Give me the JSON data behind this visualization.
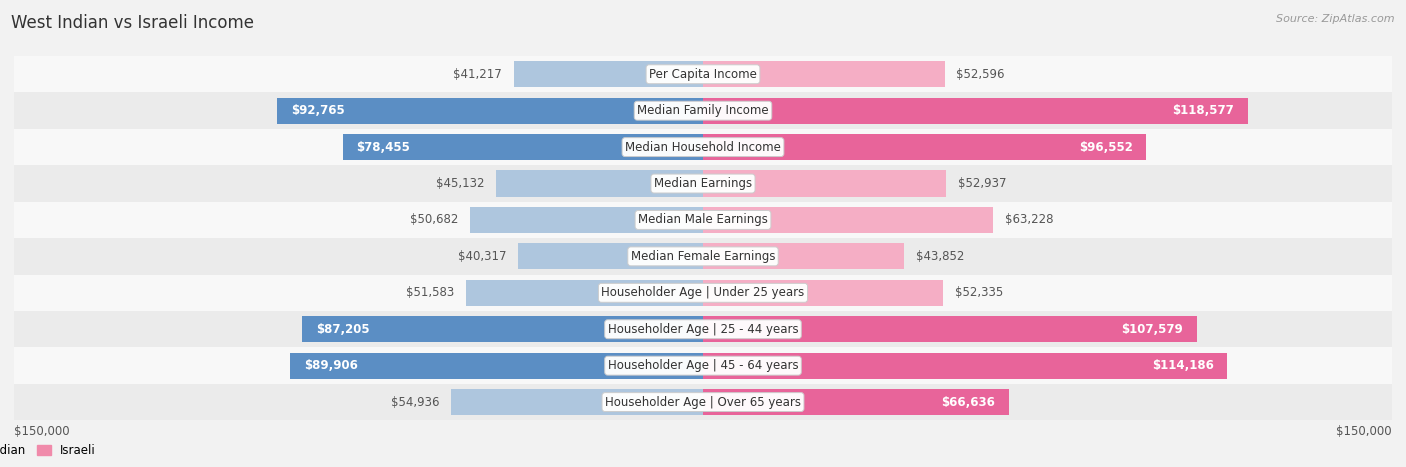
{
  "title": "West Indian vs Israeli Income",
  "source": "Source: ZipAtlas.com",
  "categories": [
    "Per Capita Income",
    "Median Family Income",
    "Median Household Income",
    "Median Earnings",
    "Median Male Earnings",
    "Median Female Earnings",
    "Householder Age | Under 25 years",
    "Householder Age | 25 - 44 years",
    "Householder Age | 45 - 64 years",
    "Householder Age | Over 65 years"
  ],
  "west_indian": [
    41217,
    92765,
    78455,
    45132,
    50682,
    40317,
    51583,
    87205,
    89906,
    54936
  ],
  "israeli": [
    52596,
    118577,
    96552,
    52937,
    63228,
    43852,
    52335,
    107579,
    114186,
    66636
  ],
  "west_indian_labels": [
    "$41,217",
    "$92,765",
    "$78,455",
    "$45,132",
    "$50,682",
    "$40,317",
    "$51,583",
    "$87,205",
    "$89,906",
    "$54,936"
  ],
  "israeli_labels": [
    "$52,596",
    "$118,577",
    "$96,552",
    "$52,937",
    "$63,228",
    "$43,852",
    "$52,335",
    "$107,579",
    "$114,186",
    "$66,636"
  ],
  "max_val": 150000,
  "west_indian_color_light": "#aec6de",
  "west_indian_color_dark": "#5b8ec4",
  "israeli_color_light": "#f5aec5",
  "israeli_color_dark": "#e8649a",
  "west_indian_legend_color": "#7fafd4",
  "israeli_legend_color": "#f08aaa",
  "bg_color": "#f2f2f2",
  "row_bg_even": "#f8f8f8",
  "row_bg_odd": "#ebebeb",
  "label_fontsize": 8.5,
  "title_fontsize": 12,
  "source_fontsize": 8,
  "axis_label_fontsize": 8.5,
  "wi_dark_threshold": 65000,
  "isr_dark_threshold": 65000
}
